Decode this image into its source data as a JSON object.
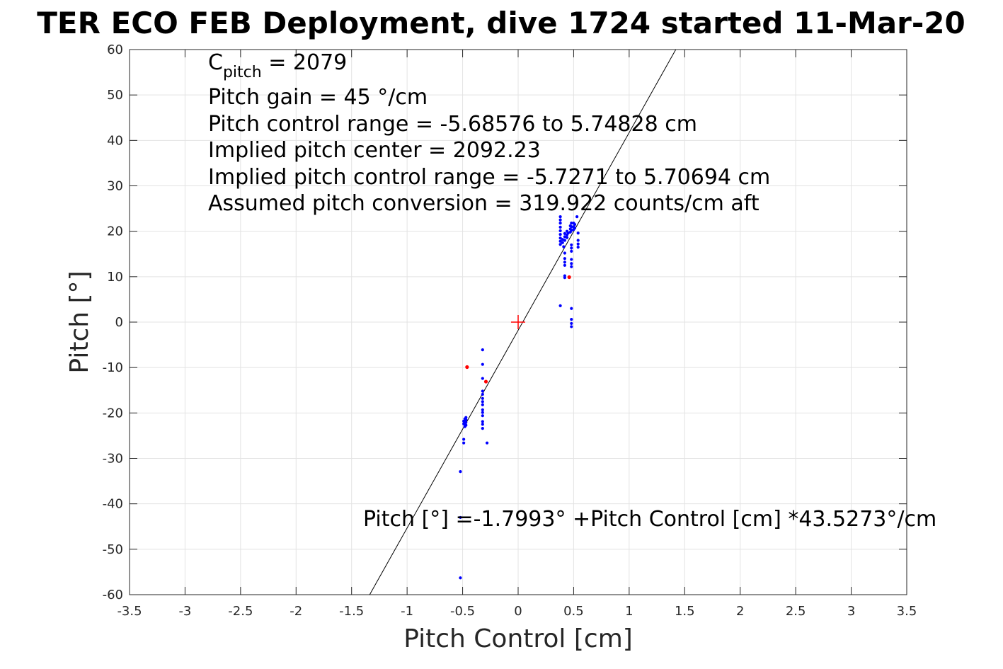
{
  "chart_data": {
    "type": "scatter",
    "title": "TER ECO FEB Deployment, dive 1724 started 11-Mar-20",
    "xlabel": "Pitch Control [cm]",
    "ylabel": "Pitch [°]",
    "xlim": [
      -3.5,
      3.5
    ],
    "ylim": [
      -60,
      60
    ],
    "xticks": [
      -3.5,
      -3,
      -2.5,
      -2,
      -1.5,
      -1,
      -0.5,
      0,
      0.5,
      1,
      1.5,
      2,
      2.5,
      3,
      3.5
    ],
    "xtick_labels": [
      "-3.5",
      "-3",
      "-2.5",
      "-2",
      "-1.5",
      "-1",
      "-0.5",
      "0",
      "0.5",
      "1",
      "1.5",
      "2",
      "2.5",
      "3",
      "3.5"
    ],
    "yticks": [
      -60,
      -50,
      -40,
      -30,
      -20,
      -10,
      0,
      10,
      20,
      30,
      40,
      50,
      60
    ],
    "ytick_labels": [
      "-60",
      "-50",
      "-40",
      "-30",
      "-20",
      "-10",
      "0",
      "10",
      "20",
      "30",
      "40",
      "50",
      "60"
    ],
    "grid": true,
    "annotations": {
      "cpitch_main": "C",
      "cpitch_sub": "pitch",
      "cpitch_value": " = 2079",
      "lines": [
        "Pitch gain = 45 °/cm",
        "Pitch control range = -5.68576 to 5.74828 cm",
        "Implied pitch center = 2092.23",
        "Implied pitch control range = -5.7271 to 5.70694 cm",
        "Assumed pitch conversion = 319.922 counts/cm aft"
      ],
      "fit_equation": "Pitch [°] =-1.7993° +Pitch Control [cm] *43.5273°/cm"
    },
    "fit_line": {
      "intercept": -1.7993,
      "slope": 43.5273
    },
    "center_marker": {
      "x": 0,
      "y": 0,
      "color": "#ff0000"
    },
    "series": [
      {
        "color": "#0000ff",
        "points": [
          [
            0.38,
            23.2
          ],
          [
            0.38,
            22.5
          ],
          [
            0.38,
            21.8
          ],
          [
            0.38,
            20.9
          ],
          [
            0.38,
            20.1
          ],
          [
            0.38,
            19.3
          ],
          [
            0.38,
            18.5
          ],
          [
            0.38,
            17.8
          ],
          [
            0.38,
            17.1
          ],
          [
            0.4,
            18.2
          ],
          [
            0.4,
            17.5
          ],
          [
            0.41,
            16.6
          ],
          [
            0.42,
            19.5
          ],
          [
            0.42,
            18.8
          ],
          [
            0.42,
            18.0
          ],
          [
            0.42,
            15.2
          ],
          [
            0.42,
            14.0
          ],
          [
            0.42,
            13.2
          ],
          [
            0.42,
            12.5
          ],
          [
            0.42,
            10.2
          ],
          [
            0.42,
            9.8
          ],
          [
            0.44,
            20.0
          ],
          [
            0.44,
            19.2
          ],
          [
            0.44,
            18.6
          ],
          [
            0.45,
            19.6
          ],
          [
            0.47,
            21.2
          ],
          [
            0.47,
            20.5
          ],
          [
            0.47,
            19.8
          ],
          [
            0.48,
            21.8
          ],
          [
            0.48,
            21.0
          ],
          [
            0.48,
            20.2
          ],
          [
            0.48,
            17.0
          ],
          [
            0.48,
            16.3
          ],
          [
            0.48,
            15.6
          ],
          [
            0.48,
            13.8
          ],
          [
            0.48,
            12.9
          ],
          [
            0.48,
            12.2
          ],
          [
            0.48,
            3.0
          ],
          [
            0.48,
            0.6
          ],
          [
            0.48,
            -0.3
          ],
          [
            0.48,
            -1.0
          ],
          [
            0.5,
            21.8
          ],
          [
            0.5,
            21.0
          ],
          [
            0.5,
            20.4
          ],
          [
            0.51,
            21.5
          ],
          [
            0.51,
            20.7
          ],
          [
            0.53,
            23.2
          ],
          [
            0.54,
            19.6
          ],
          [
            0.54,
            18.0
          ],
          [
            0.54,
            17.2
          ],
          [
            0.54,
            16.5
          ],
          [
            0.38,
            3.6
          ],
          [
            -0.47,
            -21.0
          ],
          [
            -0.47,
            -21.5
          ],
          [
            -0.47,
            -22.1
          ],
          [
            -0.47,
            -22.7
          ],
          [
            -0.48,
            -21.3
          ],
          [
            -0.48,
            -21.9
          ],
          [
            -0.48,
            -22.5
          ],
          [
            -0.48,
            -23.0
          ],
          [
            -0.49,
            -21.8
          ],
          [
            -0.49,
            -22.4
          ],
          [
            -0.49,
            -25.8
          ],
          [
            -0.49,
            -26.6
          ],
          [
            -0.32,
            -6.1
          ],
          [
            -0.32,
            -9.3
          ],
          [
            -0.32,
            -12.4
          ],
          [
            -0.32,
            -15.2
          ],
          [
            -0.32,
            -15.9
          ],
          [
            -0.32,
            -16.8
          ],
          [
            -0.32,
            -17.5
          ],
          [
            -0.32,
            -18.2
          ],
          [
            -0.32,
            -19.3
          ],
          [
            -0.32,
            -19.9
          ],
          [
            -0.32,
            -20.6
          ],
          [
            -0.32,
            -21.9
          ],
          [
            -0.32,
            -22.5
          ],
          [
            -0.32,
            -23.4
          ],
          [
            -0.28,
            -26.6
          ],
          [
            -0.52,
            -32.9
          ],
          [
            -0.52,
            -43.0
          ],
          [
            -0.52,
            -56.3
          ]
        ]
      },
      {
        "color": "#ff0000",
        "points": [
          [
            0.46,
            9.9
          ],
          [
            -0.46,
            -9.9
          ],
          [
            -0.29,
            -13.1
          ]
        ]
      }
    ]
  }
}
